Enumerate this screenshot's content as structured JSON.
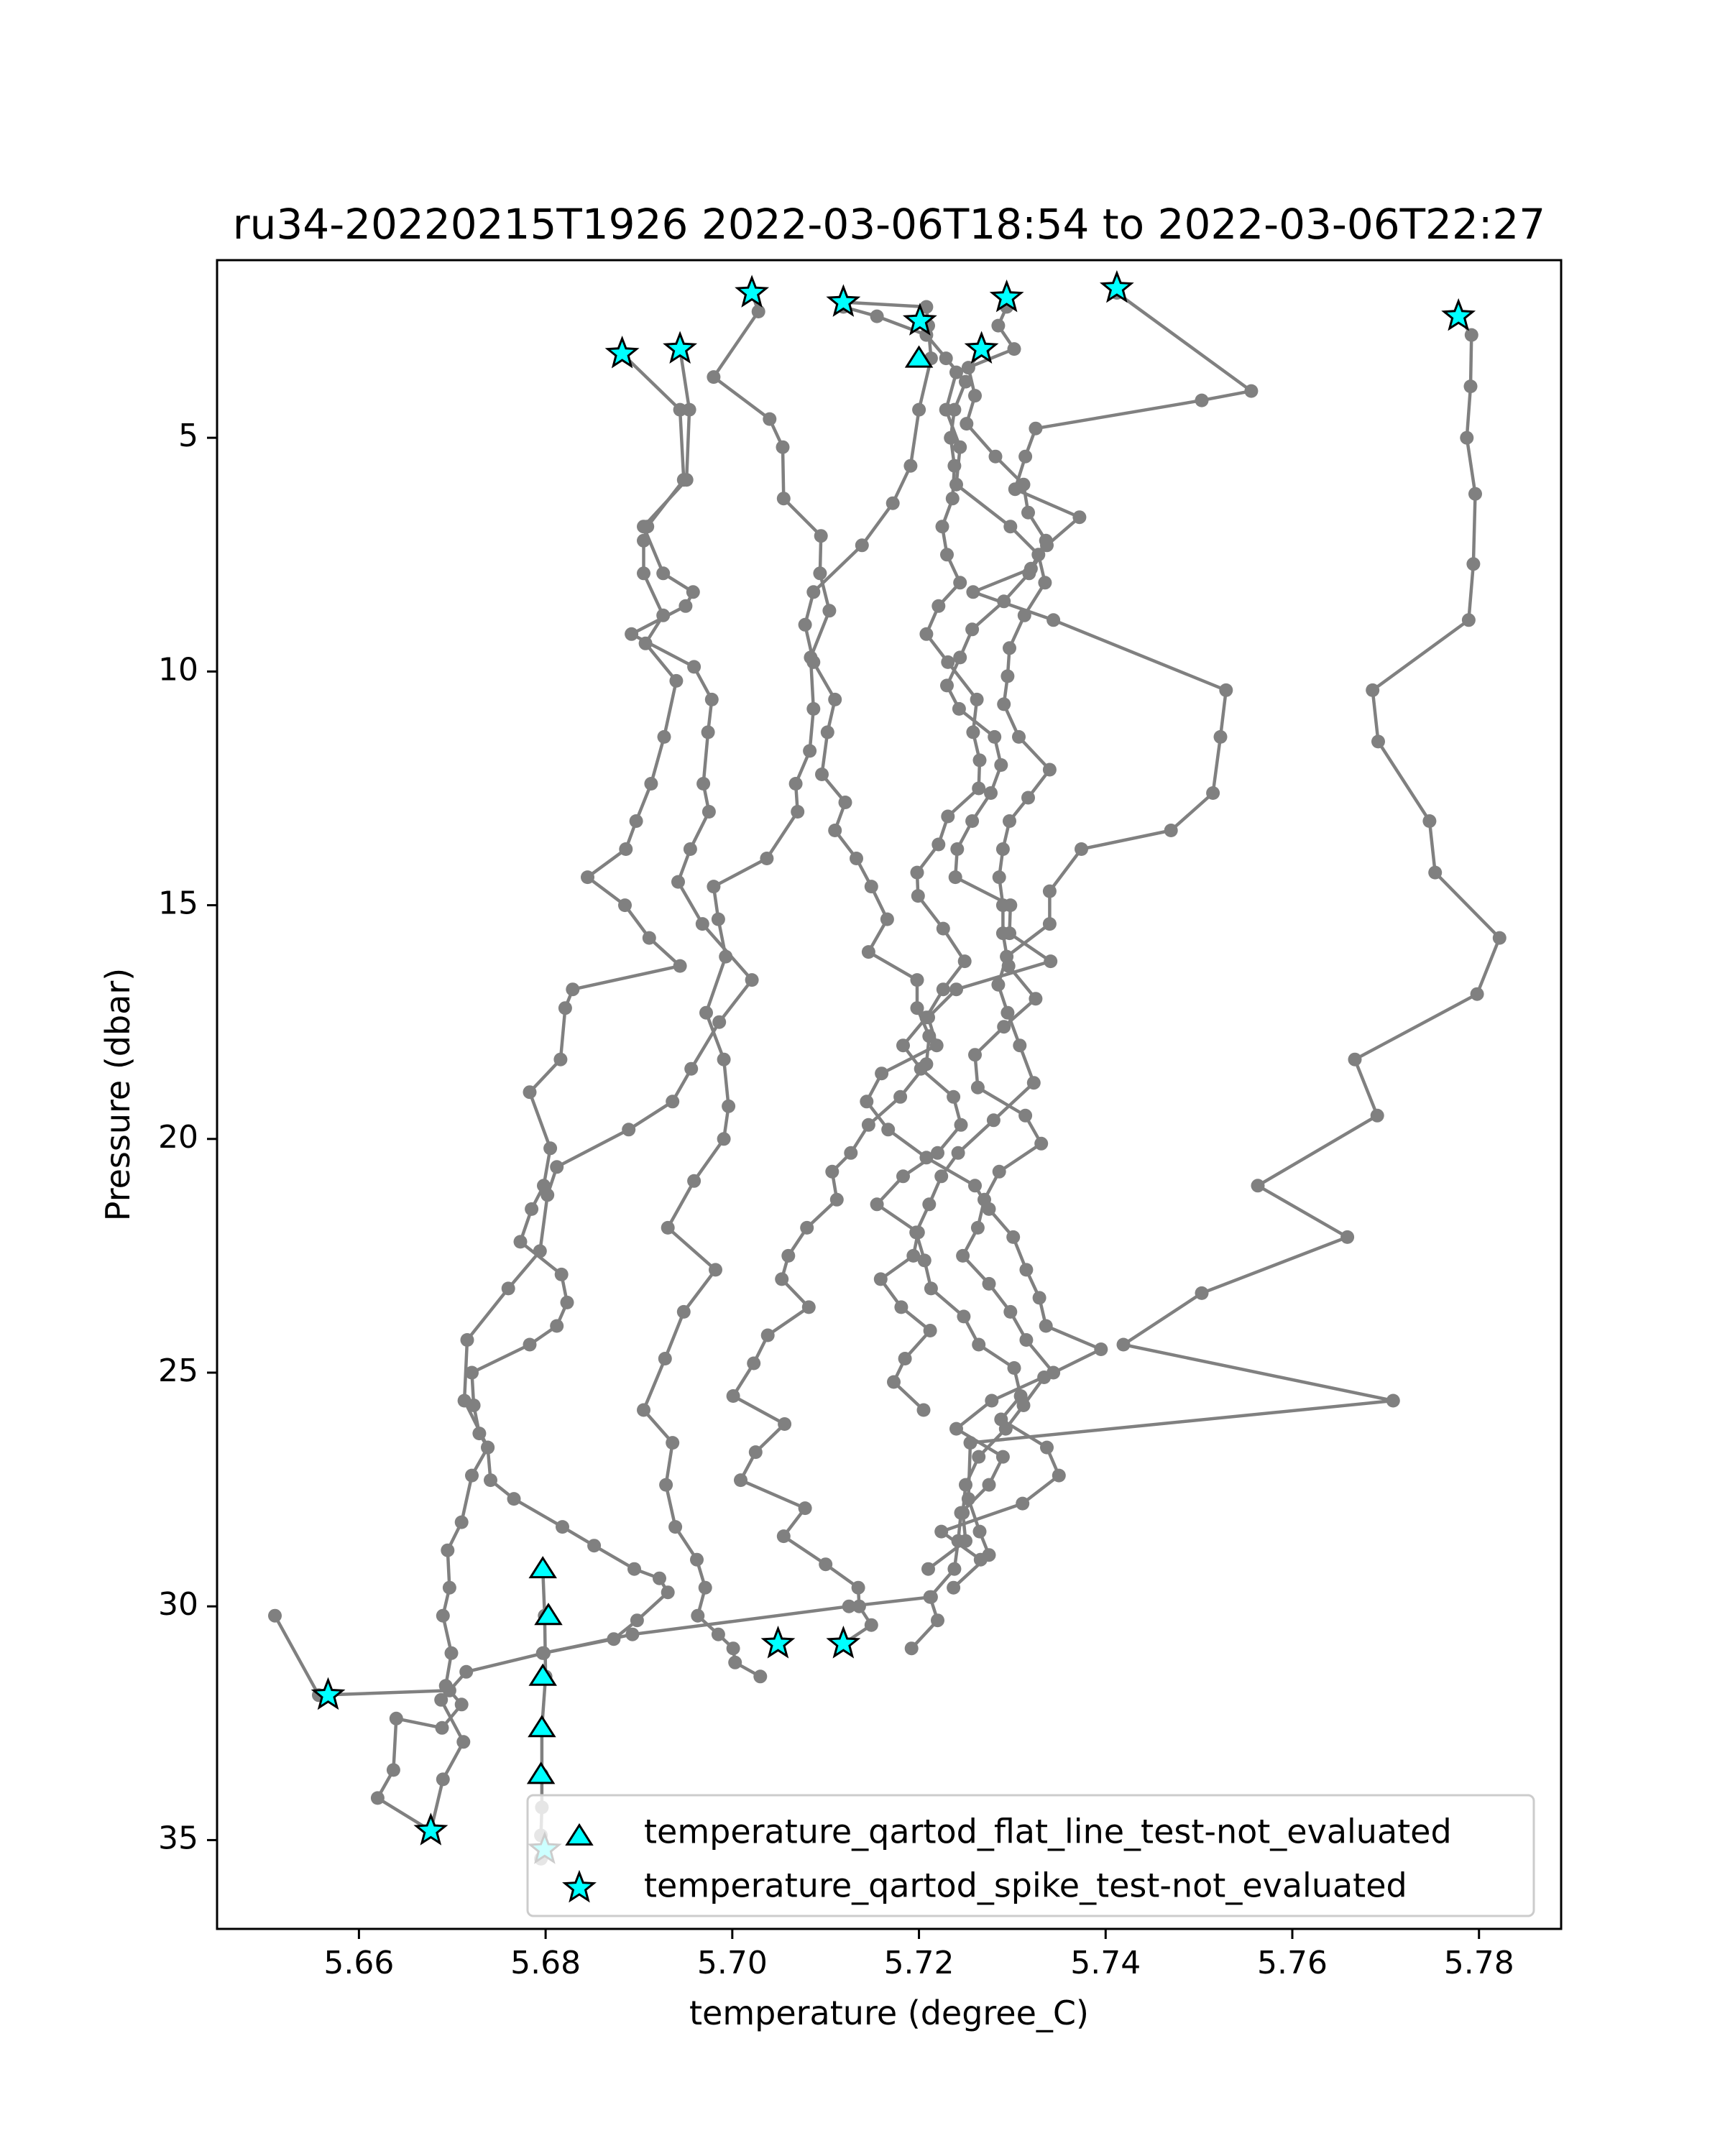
{
  "chart_data": {
    "type": "scatter",
    "title": "ru34-20220215T1926 2022-03-06T18:54 to 2022-03-06T22:27",
    "xlabel": "temperature (degree_C)",
    "ylabel": "Pressure (dbar)",
    "xlim": [
      5.6448,
      5.7888
    ],
    "ylim": [
      36.9,
      1.2
    ],
    "y_inverted": true,
    "xticks": [
      5.66,
      5.68,
      5.7,
      5.72,
      5.74,
      5.76,
      5.78
    ],
    "xtick_labels": [
      "5.66",
      "5.68",
      "5.70",
      "5.72",
      "5.74",
      "5.76",
      "5.78"
    ],
    "yticks": [
      5,
      10,
      15,
      20,
      25,
      30,
      35
    ],
    "ytick_labels": [
      "5",
      "10",
      "15",
      "20",
      "25",
      "30",
      "35"
    ],
    "grid": false,
    "legend_position": "lower-right",
    "colors": {
      "profile_line": "#808080",
      "marker_fill": "#00ffff",
      "marker_edge": "#000000"
    },
    "profiles": [
      {
        "x": [
          5.6882,
          5.6944,
          5.6948,
          5.6909,
          5.6905,
          5.6905,
          5.6926,
          5.6907,
          5.694,
          5.6927,
          5.6913,
          5.6897,
          5.6886,
          5.6845,
          5.6885,
          5.6911,
          5.6944,
          5.6829,
          5.6821,
          5.6816,
          5.6783,
          5.6805,
          5.6798,
          5.6785,
          5.6773,
          5.6817,
          5.6823,
          5.6812,
          5.6783,
          5.6721,
          5.6723,
          5.6729,
          5.6738,
          5.6741,
          5.6766,
          5.6818,
          5.6852,
          5.6895,
          5.6922,
          5.6931,
          5.6898,
          5.6873,
          5.6797
        ],
        "y": [
          3.2,
          4.4,
          5.9,
          6.9,
          7.2,
          7.9,
          8.8,
          9.4,
          10.2,
          11.4,
          12.4,
          13.2,
          13.8,
          14.4,
          15.0,
          15.7,
          16.3,
          16.8,
          17.2,
          18.3,
          19.0,
          20.2,
          21.0,
          21.5,
          22.2,
          22.9,
          23.5,
          24.0,
          24.4,
          25.0,
          25.7,
          26.3,
          26.6,
          27.3,
          27.7,
          28.3,
          28.7,
          29.2,
          29.4,
          29.7,
          30.3,
          30.7,
          31.0
        ]
      },
      {
        "x": [
          5.6944,
          5.6954,
          5.6951,
          5.6905,
          5.6926,
          5.6958,
          5.695,
          5.6892,
          5.6959,
          5.6978,
          5.6974,
          5.6969,
          5.6975,
          5.6955,
          5.6942,
          5.6968,
          5.7021,
          5.6986,
          5.6956,
          5.6936,
          5.6889,
          5.6812,
          5.6802,
          5.6794,
          5.676,
          5.6716,
          5.6713,
          5.6738,
          5.6721,
          5.671,
          5.6695,
          5.6697,
          5.669,
          5.6699,
          5.6693
        ],
        "y": [
          3.1,
          4.4,
          5.9,
          6.9,
          7.9,
          8.3,
          8.6,
          9.2,
          9.9,
          10.6,
          11.3,
          12.4,
          13.0,
          13.8,
          14.5,
          15.4,
          16.6,
          17.5,
          18.5,
          19.2,
          19.8,
          20.6,
          21.2,
          22.4,
          23.2,
          24.3,
          25.6,
          26.6,
          27.2,
          28.2,
          28.8,
          29.6,
          30.2,
          31.0,
          31.7
        ]
      },
      {
        "x": [
          5.7021,
          5.7028,
          5.698,
          5.704,
          5.7054,
          5.7055,
          5.7095,
          5.7094,
          5.7104,
          5.7084,
          5.7087,
          5.7083,
          5.7068,
          5.707,
          5.7037,
          5.698,
          5.6985,
          5.6993,
          5.6972,
          5.6991,
          5.6996,
          5.6991,
          5.6959,
          5.6931,
          5.6982,
          5.6948,
          5.6928,
          5.6905,
          5.6936,
          5.6929,
          5.6939,
          5.6962,
          5.6971,
          5.6963,
          5.6985,
          5.7001,
          5.7003,
          5.703
        ],
        "y": [
          1.9,
          2.3,
          3.7,
          4.6,
          5.2,
          6.3,
          7.1,
          7.9,
          8.7,
          9.7,
          10.8,
          11.7,
          12.4,
          13.0,
          14.0,
          14.6,
          15.3,
          16.1,
          17.3,
          18.3,
          19.3,
          20.0,
          20.9,
          21.9,
          22.8,
          23.7,
          24.7,
          25.8,
          26.5,
          27.4,
          28.3,
          29.0,
          29.6,
          30.2,
          30.6,
          30.9,
          31.2,
          31.5
        ]
      },
      {
        "x": [
          5.7119,
          5.7208,
          5.721,
          5.7213,
          5.72,
          5.7191,
          5.7172,
          5.7139,
          5.7087,
          5.7078,
          5.7087,
          5.711,
          5.7102,
          5.7096,
          5.7121,
          5.711,
          5.7133,
          5.7149,
          5.7166,
          5.7146,
          5.7198,
          5.7198,
          5.7211,
          5.7208,
          5.718,
          5.7146,
          5.7127,
          5.7107,
          5.7112,
          5.708,
          5.706,
          5.7053,
          5.7082,
          5.7038,
          5.7023,
          5.7001,
          5.7056,
          5.7025,
          5.7009,
          5.7078,
          5.7055,
          5.71,
          5.7135,
          5.7136,
          5.7149,
          5.7119
        ],
        "y": [
          2.1,
          2.2,
          2.6,
          3.3,
          4.4,
          5.6,
          6.4,
          7.3,
          8.3,
          9.0,
          9.8,
          10.6,
          11.3,
          12.2,
          12.8,
          13.4,
          14.0,
          14.6,
          15.3,
          16.0,
          16.6,
          17.2,
          17.8,
          18.4,
          19.1,
          19.7,
          20.3,
          20.7,
          21.3,
          21.9,
          22.5,
          23.0,
          23.6,
          24.2,
          24.8,
          25.5,
          26.1,
          26.7,
          27.3,
          27.9,
          28.5,
          29.1,
          29.6,
          30.0,
          30.4,
          30.8
        ]
      },
      {
        "x": [
          5.7119,
          5.7155,
          5.7208,
          5.7229,
          5.725,
          5.7238,
          5.7234,
          5.7238,
          5.7236,
          5.7225,
          5.723,
          5.7244,
          5.7221,
          5.7208,
          5.7231,
          5.7262,
          5.7258,
          5.7265,
          5.7264,
          5.7231,
          5.7221,
          5.7198,
          5.7199,
          5.7226,
          5.7249,
          5.7226,
          5.7208,
          5.7183,
          5.7202,
          5.7237,
          5.7245,
          5.722,
          5.7183,
          5.7155,
          5.7199,
          5.7194,
          5.7159,
          5.7181,
          5.7212,
          5.7185,
          5.7173,
          5.7205
        ],
        "y": [
          2.2,
          2.4,
          2.8,
          3.3,
          3.8,
          4.4,
          5.0,
          5.6,
          6.3,
          6.9,
          7.5,
          8.1,
          8.6,
          9.2,
          9.8,
          10.6,
          11.3,
          11.9,
          12.5,
          13.1,
          13.7,
          14.3,
          14.8,
          15.5,
          16.2,
          16.8,
          17.4,
          18.0,
          18.5,
          19.1,
          19.7,
          20.3,
          20.8,
          21.4,
          22.0,
          22.5,
          23.0,
          23.6,
          24.1,
          24.7,
          25.2,
          25.8
        ]
      },
      {
        "x": [
          5.7294,
          5.7285,
          5.7302,
          5.724,
          5.7229,
          5.7244,
          5.724,
          5.7298,
          5.7328,
          5.7335,
          5.7313,
          5.7297,
          5.7295,
          5.7291,
          5.7307,
          5.734,
          5.7317,
          5.7297,
          5.729,
          5.7286,
          5.729,
          5.729,
          5.7296,
          5.7325,
          5.7291,
          5.726,
          5.7263,
          5.7314,
          5.7331,
          5.7286,
          5.727,
          5.7263,
          5.7247,
          5.7275,
          5.7298,
          5.7315,
          5.7344,
          5.7278,
          5.724,
          5.729,
          5.7275,
          5.7245,
          5.7242,
          5.7238,
          5.7212,
          5.722,
          5.7192
        ],
        "y": [
          2.2,
          2.6,
          3.1,
          3.6,
          4.4,
          5.2,
          6.0,
          6.9,
          7.5,
          8.1,
          8.8,
          9.5,
          10.1,
          10.7,
          11.4,
          12.1,
          12.7,
          13.2,
          13.8,
          14.4,
          15.0,
          15.6,
          16.3,
          17.0,
          17.6,
          18.2,
          18.9,
          19.5,
          20.1,
          20.7,
          21.3,
          21.9,
          22.5,
          23.1,
          23.7,
          24.3,
          25.0,
          25.6,
          26.2,
          26.8,
          27.4,
          28.0,
          28.6,
          29.2,
          29.8,
          30.3,
          30.9
        ]
      },
      {
        "x": [
          5.7412,
          5.7556,
          5.7503,
          5.7325,
          5.7314,
          5.7303,
          5.7372,
          5.7337,
          5.7318,
          5.7291,
          5.7257,
          5.7244,
          5.723,
          5.7243,
          5.7281,
          5.7288,
          5.7277,
          5.7257,
          5.7241,
          5.7239,
          5.7298,
          5.7297,
          5.7341,
          5.724,
          5.721,
          5.7219,
          5.716,
          5.7144,
          5.7167,
          5.7208,
          5.726,
          5.7275,
          5.7301,
          5.7315,
          5.7329,
          5.7336,
          5.7395,
          5.7334,
          5.7312,
          5.7293,
          5.7264,
          5.725,
          5.7247,
          5.725,
          5.721
        ],
        "y": [
          1.9,
          4.0,
          4.2,
          4.8,
          5.4,
          6.1,
          6.7,
          7.3,
          7.9,
          8.5,
          9.1,
          9.7,
          10.3,
          10.8,
          11.4,
          12.0,
          12.6,
          13.2,
          13.8,
          14.4,
          15.0,
          15.6,
          16.2,
          16.8,
          17.4,
          18.0,
          18.6,
          19.2,
          19.8,
          20.4,
          21.0,
          21.5,
          22.1,
          22.8,
          23.4,
          24.0,
          24.5,
          25.1,
          25.7,
          26.2,
          26.8,
          27.4,
          28.0,
          28.6,
          29.2
        ]
      },
      {
        "x": [
          5.7269,
          5.7253,
          5.726,
          5.7251,
          5.7282,
          5.7312,
          5.7317,
          5.7336,
          5.732,
          5.7258,
          5.7344,
          5.7529,
          5.7523,
          5.7515,
          5.747,
          5.7374,
          5.734,
          5.734,
          5.7294,
          5.7285,
          5.7295,
          5.7308,
          5.7323,
          5.728,
          5.7242,
          5.7224,
          5.7211,
          5.7197,
          5.7206,
          5.7213,
          5.7248,
          5.7264,
          5.7302,
          5.7309,
          5.7288,
          5.7337,
          5.735,
          5.7311,
          5.7224,
          5.7266
        ],
        "y": [
          3.1,
          3.5,
          4.1,
          4.7,
          5.4,
          6.0,
          6.6,
          7.2,
          7.8,
          8.3,
          8.9,
          10.4,
          11.4,
          12.6,
          13.4,
          13.8,
          14.7,
          15.4,
          16.1,
          16.7,
          17.3,
          18.0,
          18.8,
          19.6,
          20.3,
          20.8,
          21.4,
          22.0,
          22.6,
          23.2,
          23.8,
          24.4,
          24.9,
          25.5,
          26.0,
          26.6,
          27.2,
          27.8,
          28.4,
          29.0
        ]
      },
      {
        "x": [
          5.7778,
          5.7792,
          5.7791,
          5.7787,
          5.7796,
          5.7794,
          5.7789,
          5.7686,
          5.7692,
          5.7747,
          5.7753,
          5.7822,
          5.7798,
          5.7667,
          5.7691,
          5.7563,
          5.7659,
          5.7503,
          5.7419,
          5.7708,
          5.7255,
          5.7253,
          5.7265,
          5.7275,
          5.7237
        ],
        "y": [
          2.4,
          2.8,
          3.9,
          5.0,
          6.2,
          7.7,
          8.9,
          10.4,
          11.5,
          13.2,
          14.3,
          15.7,
          16.9,
          18.3,
          19.5,
          21.0,
          22.1,
          23.3,
          24.4,
          25.6,
          26.5,
          27.7,
          28.4,
          28.9,
          29.6
        ]
      },
      {
        "x": [
          5.6797,
          5.6799,
          5.68,
          5.6796,
          5.6796,
          5.6796,
          5.6795,
          5.6799,
          5.6795
        ],
        "y": [
          29.2,
          30.2,
          31.5,
          32.6,
          33.6,
          34.3,
          34.9,
          35.2,
          35.4
        ]
      },
      {
        "x": [
          5.651,
          5.6557,
          5.6697,
          5.671,
          5.6689,
          5.664,
          5.6637,
          5.662,
          5.6677,
          5.669,
          5.6712,
          5.6688,
          5.6715,
          5.6798,
          5.6893,
          5.7125,
          5.7213
        ],
        "y": [
          30.2,
          31.9,
          31.8,
          32.1,
          32.6,
          32.4,
          33.5,
          34.1,
          34.8,
          33.7,
          32.9,
          32.0,
          31.4,
          31.0,
          30.6,
          30.0,
          29.8
        ]
      }
    ],
    "legend": [
      {
        "label": "temperature_qartod_flat_line_test-not_evaluated",
        "marker": "triangle"
      },
      {
        "label": "temperature_qartod_spike_test-not_evaluated",
        "marker": "star"
      }
    ],
    "flat_line_points": {
      "x": [
        5.72,
        5.6797,
        5.6803,
        5.6797,
        5.6796,
        5.6795
      ],
      "y": [
        3.3,
        29.2,
        30.2,
        31.5,
        32.6,
        33.6
      ]
    },
    "spike_points": {
      "x": [
        5.7021,
        5.7119,
        5.7201,
        5.7294,
        5.7412,
        5.7778,
        5.6882,
        5.6944,
        5.7267,
        5.7049,
        5.7119,
        5.6567,
        5.6677,
        5.6799
      ],
      "y": [
        1.9,
        2.1,
        2.5,
        2.0,
        1.8,
        2.4,
        3.2,
        3.1,
        3.1,
        30.8,
        30.8,
        31.9,
        34.8,
        35.2
      ]
    }
  }
}
